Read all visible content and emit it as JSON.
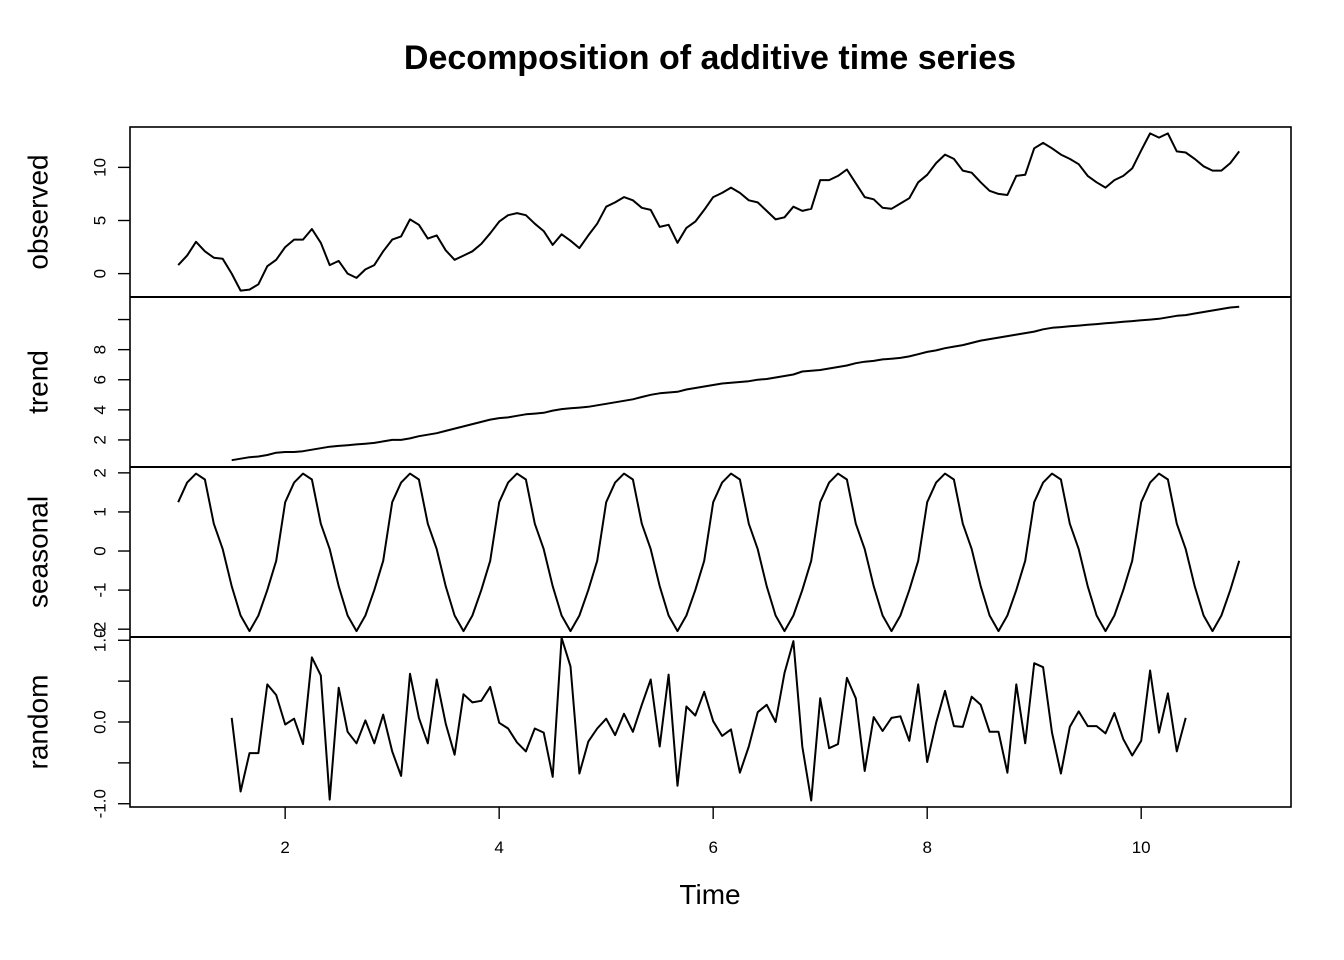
{
  "chart_data": {
    "type": "line",
    "title": "Decomposition of additive time series",
    "xlabel": "Time",
    "xlim": [
      0.55,
      11.4
    ],
    "xticks": [
      2,
      4,
      6,
      8,
      10
    ],
    "panels": [
      {
        "name": "observed",
        "ylim": [
          -2.2,
          13.8
        ],
        "yticks": [
          0,
          5,
          10
        ],
        "x_start": 1,
        "x_step": 0.08333,
        "values": [
          0.8,
          1.7,
          3.0,
          2.1,
          1.5,
          1.4,
          0.0,
          -1.6,
          -1.5,
          -1.0,
          0.7,
          1.3,
          2.5,
          3.2,
          3.2,
          4.2,
          2.9,
          0.8,
          1.2,
          0.0,
          -0.4,
          0.4,
          0.8,
          2.1,
          3.2,
          3.5,
          5.1,
          4.6,
          3.3,
          3.6,
          2.2,
          1.3,
          1.7,
          2.1,
          2.8,
          3.8,
          4.9,
          5.5,
          5.7,
          5.5,
          4.7,
          4.0,
          2.7,
          3.7,
          3.1,
          2.4,
          3.6,
          4.7,
          6.3,
          6.7,
          7.2,
          6.9,
          6.2,
          6.0,
          4.4,
          4.6,
          2.9,
          4.3,
          4.9,
          6.0,
          7.2,
          7.6,
          8.1,
          7.6,
          6.9,
          6.7,
          5.9,
          5.1,
          5.3,
          6.3,
          5.9,
          6.1,
          8.8,
          8.8,
          9.2,
          9.8,
          8.5,
          7.2,
          7.0,
          6.2,
          6.1,
          6.6,
          7.1,
          8.6,
          9.3,
          10.4,
          11.2,
          10.8,
          9.7,
          9.5,
          8.6,
          7.8,
          7.5,
          7.4,
          9.2,
          9.3,
          11.8,
          12.3,
          11.8,
          11.2,
          10.8,
          10.3,
          9.2,
          8.6,
          8.1,
          8.8,
          9.2,
          9.9,
          11.6,
          13.2,
          12.8,
          13.2,
          11.5,
          11.4,
          10.8,
          10.1,
          9.7,
          9.7,
          10.4,
          11.5
        ]
      },
      {
        "name": "trend",
        "ylim": [
          0.2,
          11.5
        ],
        "yticks": [
          2,
          4,
          6,
          8,
          10
        ],
        "ytick_labels": [
          "2",
          "4",
          "6",
          "8",
          ""
        ],
        "x_start": 1.5,
        "x_step": 0.08333,
        "values": [
          0.65,
          0.75,
          0.85,
          0.9,
          1.0,
          1.15,
          1.2,
          1.2,
          1.25,
          1.35,
          1.45,
          1.55,
          1.6,
          1.65,
          1.7,
          1.75,
          1.8,
          1.9,
          2.0,
          2.0,
          2.1,
          2.25,
          2.35,
          2.45,
          2.6,
          2.75,
          2.9,
          3.05,
          3.2,
          3.35,
          3.45,
          3.5,
          3.6,
          3.7,
          3.75,
          3.8,
          3.95,
          4.05,
          4.1,
          4.15,
          4.2,
          4.3,
          4.4,
          4.5,
          4.6,
          4.7,
          4.85,
          5.0,
          5.1,
          5.15,
          5.2,
          5.35,
          5.45,
          5.55,
          5.65,
          5.75,
          5.8,
          5.85,
          5.9,
          6.0,
          6.05,
          6.15,
          6.25,
          6.35,
          6.55,
          6.6,
          6.65,
          6.75,
          6.85,
          6.95,
          7.1,
          7.2,
          7.25,
          7.35,
          7.4,
          7.45,
          7.55,
          7.7,
          7.85,
          7.95,
          8.1,
          8.2,
          8.3,
          8.45,
          8.6,
          8.7,
          8.8,
          8.9,
          9.0,
          9.1,
          9.2,
          9.35,
          9.45,
          9.5,
          9.55,
          9.6,
          9.65,
          9.7,
          9.75,
          9.8,
          9.85,
          9.9,
          9.95,
          10.0,
          10.05,
          10.15,
          10.25,
          10.3,
          10.4,
          10.5,
          10.6,
          10.7,
          10.8,
          10.85
        ]
      },
      {
        "name": "seasonal",
        "ylim": [
          -2.2,
          2.15
        ],
        "yticks": [
          -2,
          -1,
          0,
          1,
          2
        ],
        "ytick_labels": [
          "-2",
          "-1",
          "0",
          "1",
          "2"
        ],
        "x_start": 1,
        "x_step": 0.08333,
        "cycle": [
          1.25,
          1.75,
          1.98,
          1.83,
          0.7,
          0.05,
          -0.9,
          -1.65,
          -2.05,
          -1.65,
          -1.0,
          -0.25
        ],
        "n_points": 120
      },
      {
        "name": "random",
        "ylim": [
          -1.04,
          1.04
        ],
        "yticks": [
          -1.0,
          -0.5,
          0.0,
          0.5,
          1.0
        ],
        "ytick_labels": [
          "-1.0",
          "",
          "0.0",
          "",
          "1.0"
        ],
        "x_start": 1.5,
        "x_step": 0.08333,
        "values": [
          0.05,
          -0.85,
          -0.38,
          -0.38,
          0.46,
          0.33,
          -0.03,
          0.04,
          -0.27,
          0.79,
          0.57,
          -0.95,
          0.42,
          -0.12,
          -0.26,
          0.02,
          -0.26,
          0.09,
          -0.36,
          -0.66,
          0.59,
          0.05,
          -0.26,
          0.52,
          -0.02,
          -0.4,
          0.34,
          0.24,
          0.26,
          0.43,
          -0.01,
          -0.08,
          -0.25,
          -0.36,
          -0.08,
          -0.13,
          -0.67,
          1.03,
          0.68,
          -0.63,
          -0.24,
          -0.08,
          0.04,
          -0.16,
          0.1,
          -0.12,
          0.21,
          0.52,
          -0.3,
          0.58,
          -0.78,
          0.19,
          0.08,
          0.37,
          0.01,
          -0.17,
          -0.09,
          -0.62,
          -0.3,
          0.12,
          0.21,
          0.0,
          0.6,
          0.99,
          -0.3,
          -0.96,
          0.29,
          -0.32,
          -0.27,
          0.54,
          0.29,
          -0.6,
          0.06,
          -0.11,
          0.05,
          0.07,
          -0.23,
          0.46,
          -0.49,
          -0.01,
          0.38,
          -0.05,
          -0.06,
          0.31,
          0.21,
          -0.12,
          -0.12,
          -0.62,
          0.46,
          -0.26,
          0.72,
          0.67,
          -0.13,
          -0.63,
          -0.06,
          0.13,
          -0.05,
          -0.05,
          -0.14,
          0.11,
          -0.21,
          -0.41,
          -0.23,
          0.63,
          -0.13,
          0.35,
          -0.36,
          0.05
        ]
      }
    ]
  }
}
